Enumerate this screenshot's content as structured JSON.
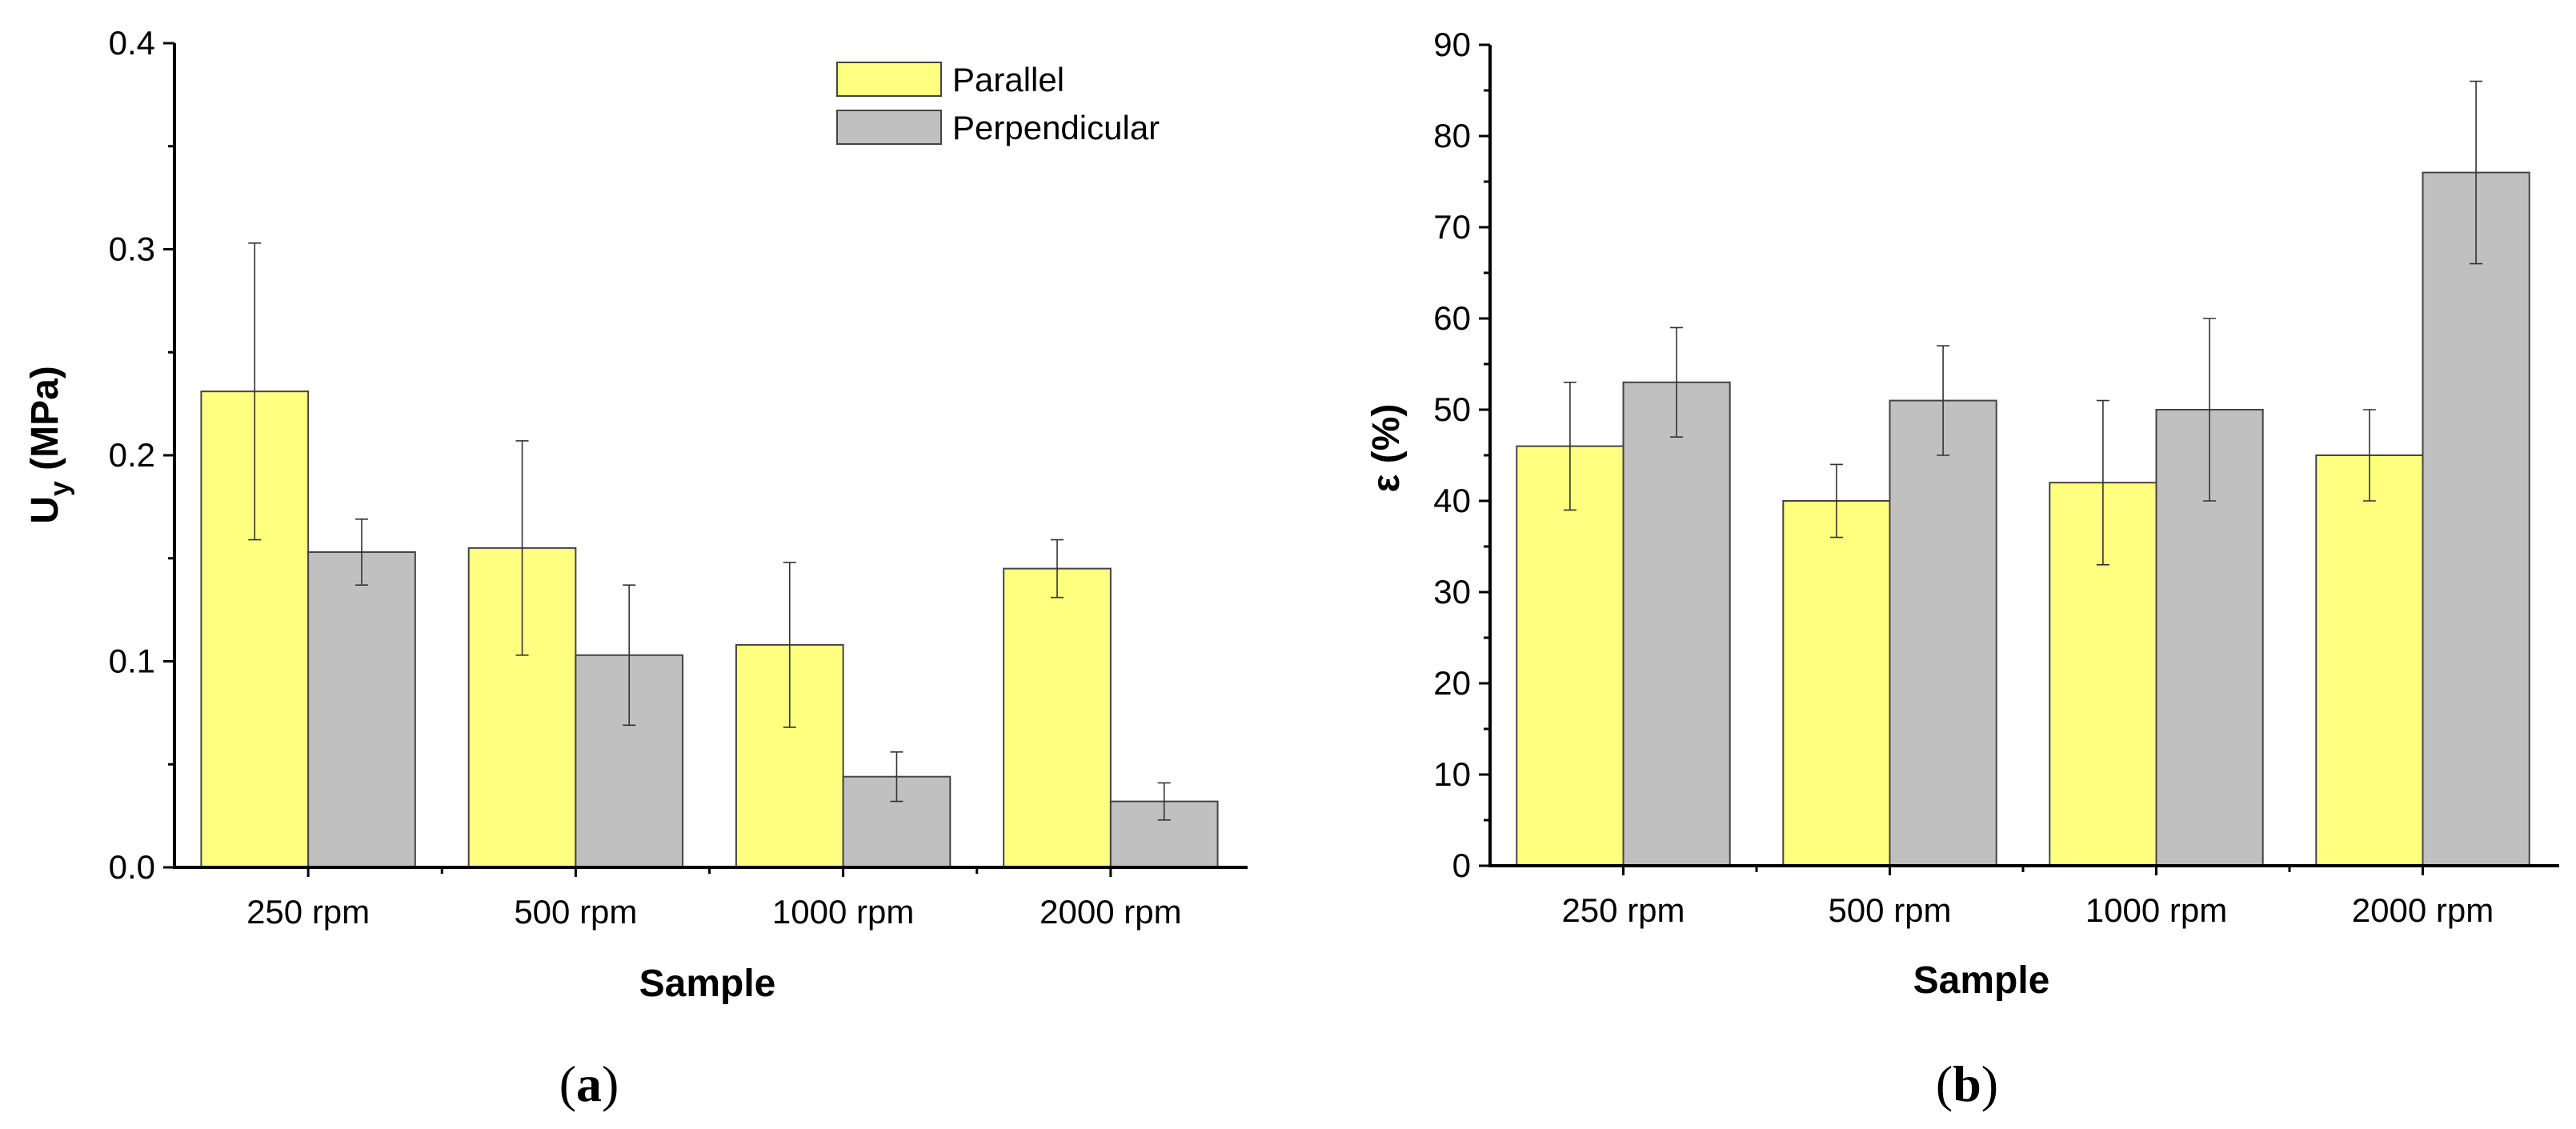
{
  "chart_data": [
    {
      "type": "bar",
      "panel_label": "a",
      "categories": [
        "250 rpm",
        "500 rpm",
        "1000 rpm",
        "2000 rpm"
      ],
      "series": [
        {
          "name": "Parallel",
          "color": "#FFFF80",
          "values": [
            0.231,
            0.155,
            0.108,
            0.145
          ],
          "errors": [
            0.072,
            0.052,
            0.04,
            0.014
          ]
        },
        {
          "name": "Perpendicular",
          "color": "#C0C0C0",
          "values": [
            0.153,
            0.103,
            0.044,
            0.032
          ],
          "errors": [
            0.016,
            0.034,
            0.012,
            0.009
          ]
        }
      ],
      "ylim": [
        0,
        0.4
      ],
      "yticks": [
        "0.0",
        "0.1",
        "0.2",
        "0.3",
        "0.4"
      ],
      "ytick_values": [
        0,
        0.1,
        0.2,
        0.3,
        0.4
      ],
      "ylabel": {
        "main": "U",
        "sub": "y",
        "unit": " (MPa)"
      },
      "xlabel": "Sample",
      "legend": "top-right"
    },
    {
      "type": "bar",
      "panel_label": "b",
      "categories": [
        "250 rpm",
        "500 rpm",
        "1000 rpm",
        "2000 rpm"
      ],
      "series": [
        {
          "name": "Parallel",
          "color": "#FFFF80",
          "values": [
            46,
            40,
            42,
            45
          ],
          "errors": [
            7,
            4,
            9,
            5
          ]
        },
        {
          "name": "Perpendicular",
          "color": "#C0C0C0",
          "values": [
            53,
            51,
            50,
            76
          ],
          "errors": [
            6,
            6,
            10,
            10
          ]
        }
      ],
      "ylim": [
        0,
        90
      ],
      "yticks": [
        "0",
        "10",
        "20",
        "30",
        "40",
        "50",
        "60",
        "70",
        "80",
        "90"
      ],
      "ytick_values": [
        0,
        10,
        20,
        30,
        40,
        50,
        60,
        70,
        80,
        90
      ],
      "ylabel": "ε (%)",
      "xlabel": "Sample"
    }
  ],
  "panel_labels": {
    "a": {
      "open": "(",
      "letter": "a",
      "close": ")"
    },
    "b": {
      "open": "(",
      "letter": "b",
      "close": ")"
    }
  }
}
